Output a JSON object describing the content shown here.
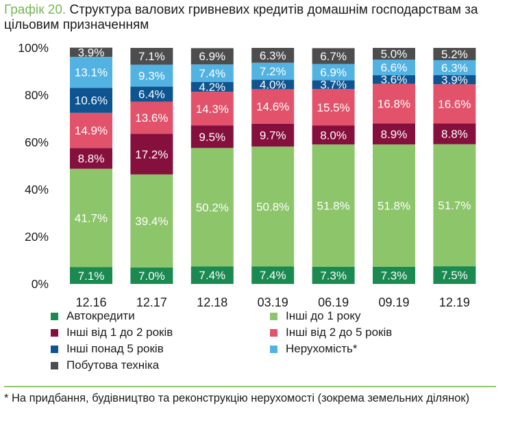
{
  "title": {
    "prefix": "Графік 20.",
    "text": "Структура валових гривневих кредитів домашнім господарствам за цільовим призначенням"
  },
  "chart_data": {
    "type": "bar",
    "stacked": true,
    "categories": [
      "12.16",
      "12.17",
      "12.18",
      "03.19",
      "06.19",
      "09.19",
      "12.19"
    ],
    "ylim": [
      0,
      100
    ],
    "yticks": [
      "0%",
      "20%",
      "40%",
      "60%",
      "80%",
      "100%"
    ],
    "series": [
      {
        "name": "Автокредити",
        "color": "#1a8a50",
        "values": [
          7.1,
          7.0,
          7.4,
          7.4,
          7.3,
          7.3,
          7.5
        ]
      },
      {
        "name": "Інші до 1 року",
        "color": "#8cc56a",
        "values": [
          41.7,
          39.4,
          50.2,
          50.8,
          51.8,
          51.8,
          51.7
        ]
      },
      {
        "name": "Інші від 1 до 2 років",
        "color": "#86103d",
        "values": [
          8.8,
          17.2,
          9.5,
          9.7,
          8.0,
          8.9,
          8.8
        ]
      },
      {
        "name": "Інші від 2 до 5 років",
        "color": "#e2536b",
        "values": [
          14.9,
          13.6,
          14.3,
          14.6,
          15.5,
          16.8,
          16.6
        ]
      },
      {
        "name": "Інші понад 5 років",
        "color": "#0d5490",
        "values": [
          10.6,
          6.4,
          4.2,
          4.0,
          3.7,
          3.6,
          3.9
        ]
      },
      {
        "name": "Нерухомість*",
        "color": "#52b3e3",
        "values": [
          13.1,
          9.3,
          7.4,
          7.2,
          6.9,
          6.6,
          6.3
        ]
      },
      {
        "name": "Побутова техніка",
        "color": "#4d4d4d",
        "values": [
          3.9,
          7.1,
          6.9,
          6.3,
          6.7,
          5.0,
          5.2
        ]
      }
    ],
    "value_suffix": "%",
    "legend_position": "bottom",
    "legend": [
      "Автокредити",
      "Інші до 1 року",
      "Інші від 1 до 2 років",
      "Інші від 2 до 5 років",
      "Інші понад 5 років",
      "Нерухомість*",
      "Побутова техніка"
    ]
  },
  "footnote": "* На придбання, будівництво та реконструкцію нерухомості (зокрема земельних ділянок)"
}
